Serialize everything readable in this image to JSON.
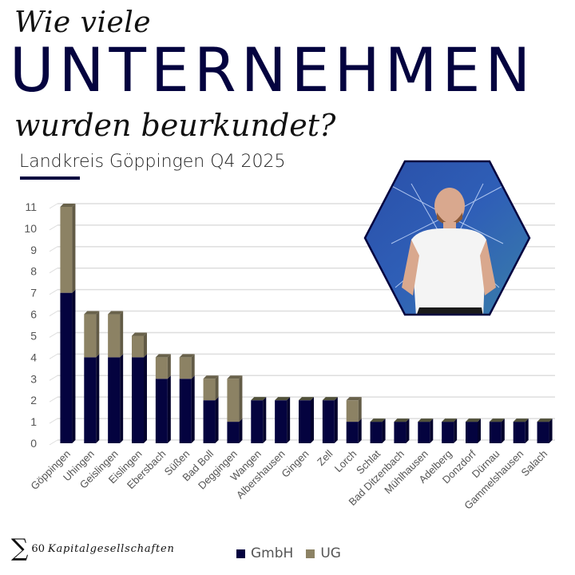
{
  "header": {
    "line1": "Wie viele",
    "big": "UNTERNEHMEN",
    "line3": "wurden beurkundet?",
    "subtitle": "Landkreis Göppingen Q4 2025"
  },
  "footer": {
    "sigma": "∑",
    "total_count": "60",
    "total_label": "Kapitalgesellschaften"
  },
  "colors": {
    "gmbh": "#04033f",
    "ug": "#8c8264",
    "accent": "#04033f"
  },
  "photo": {
    "alt": "portrait-photo"
  },
  "chart_data": {
    "type": "bar",
    "stacked": true,
    "title": "Landkreis Göppingen Q4 2025",
    "xlabel": "",
    "ylabel": "",
    "ylim": [
      0,
      11
    ],
    "yticks": [
      0,
      1,
      2,
      3,
      4,
      5,
      6,
      7,
      8,
      9,
      10,
      11
    ],
    "grid": true,
    "legend_position": "bottom",
    "categories": [
      "Göppingen",
      "Uhingen",
      "Geislingen",
      "Eislingen",
      "Ebersbach",
      "Süßen",
      "Bad Boll",
      "Deggingen",
      "Wangen",
      "Albershausen",
      "Gingen",
      "Zell",
      "Lorch",
      "Schlat",
      "Bad Ditzenbach",
      "Mühlhausen",
      "Adelberg",
      "Donzdorf",
      "Dürnau",
      "Gammelshausen",
      "Salach"
    ],
    "series": [
      {
        "name": "GmbH",
        "values": [
          7,
          4,
          4,
          4,
          3,
          3,
          2,
          1,
          2,
          2,
          2,
          2,
          1,
          1,
          1,
          1,
          1,
          1,
          1,
          1,
          1
        ]
      },
      {
        "name": "UG",
        "values": [
          4,
          2,
          2,
          1,
          1,
          1,
          1,
          2,
          0,
          0,
          0,
          0,
          1,
          0,
          0,
          0,
          0,
          0,
          0,
          0,
          0
        ]
      }
    ]
  }
}
